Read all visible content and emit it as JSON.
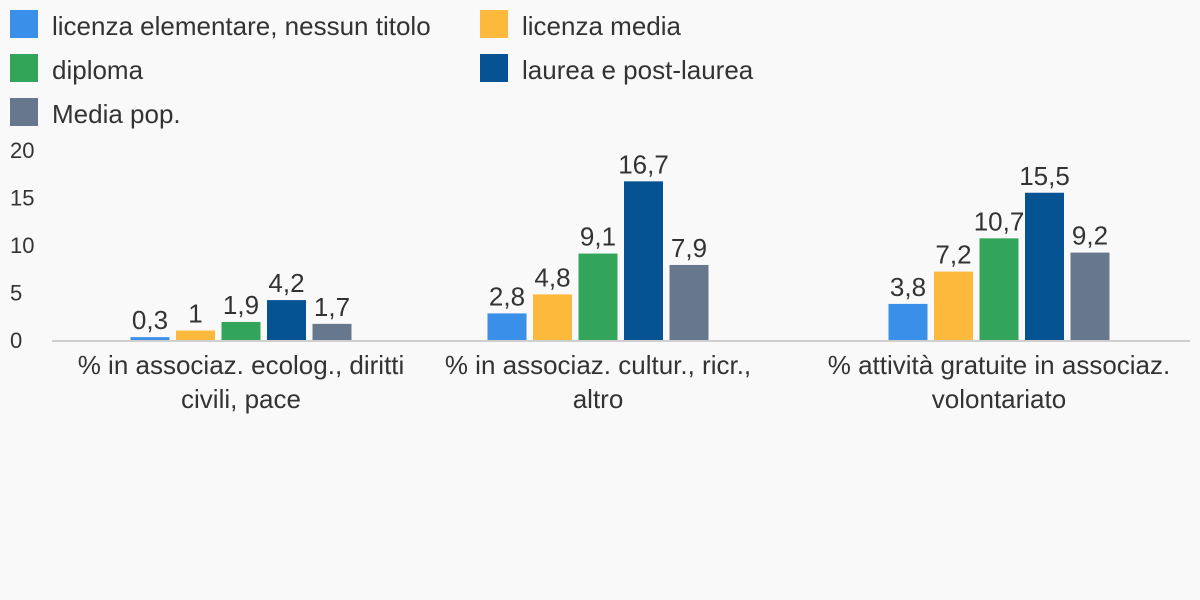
{
  "chart_data": {
    "type": "bar",
    "categories": [
      "% in associaz. ecolog., diritti civili, pace",
      "% in associaz. cultur., ricr., altro",
      "% attività gratuite in associaz. volontariato"
    ],
    "category_lines": [
      [
        "% in associaz. ecolog., diritti",
        "civili, pace"
      ],
      [
        "% in associaz. cultur., ricr.,",
        "altro"
      ],
      [
        "% attività gratuite in associaz.",
        "volontariato"
      ]
    ],
    "series": [
      {
        "name": "licenza elementare, nessun titolo",
        "color": "#3a8fe8",
        "values": [
          0.3,
          2.8,
          3.8
        ],
        "labels": [
          "0,3",
          "2,8",
          "3,8"
        ]
      },
      {
        "name": "licenza media",
        "color": "#fdb93c",
        "values": [
          1,
          4.8,
          7.2
        ],
        "labels": [
          "1",
          "4,8",
          "7,2"
        ]
      },
      {
        "name": "diploma",
        "color": "#33a55a",
        "values": [
          1.9,
          9.1,
          10.7
        ],
        "labels": [
          "1,9",
          "9,1",
          "10,7"
        ]
      },
      {
        "name": "laurea e post-laurea",
        "color": "#065394",
        "values": [
          4.2,
          16.7,
          15.5
        ],
        "labels": [
          "4,2",
          "16,7",
          "15,5"
        ]
      },
      {
        "name": "Media pop.",
        "color": "#67778d",
        "values": [
          1.7,
          7.9,
          9.2
        ],
        "labels": [
          "1,7",
          "7,9",
          "9,2"
        ]
      }
    ],
    "ylim": [
      0,
      20
    ],
    "yticks": [
      0,
      5,
      10,
      15,
      20
    ],
    "ytick_labels": [
      "0",
      "5",
      "10",
      "15",
      "20"
    ],
    "title": "",
    "xlabel": "",
    "ylabel": "",
    "grid": false,
    "legend_position": "top-left"
  }
}
